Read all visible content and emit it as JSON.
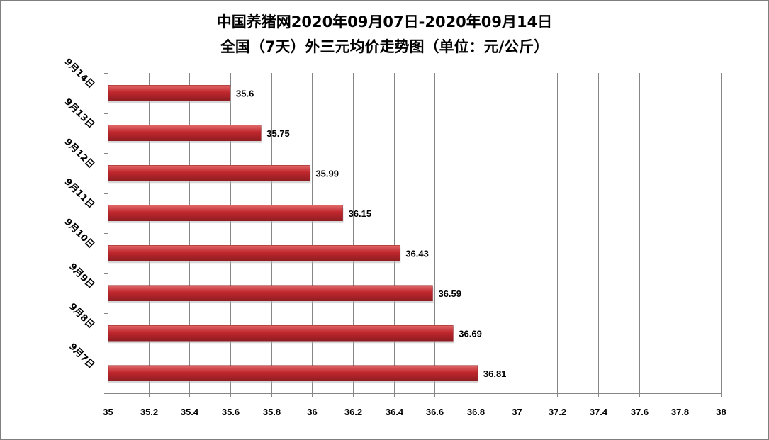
{
  "chart_data": {
    "type": "bar",
    "orientation": "horizontal",
    "title": "中国养猪网2020年09月07日-2020年09月14日",
    "subtitle": "全国（7天）外三元均价走势图（单位：元/公斤）",
    "categories": [
      "9月7日",
      "9月8日",
      "9月9日",
      "9月10日",
      "9月11日",
      "9月12日",
      "9月13日",
      "9月14日"
    ],
    "values": [
      36.81,
      36.69,
      36.59,
      36.43,
      36.15,
      35.99,
      35.75,
      35.6
    ],
    "data_labels": [
      "36.81",
      "36.69",
      "36.59",
      "36.43",
      "36.15",
      "35.99",
      "35.75",
      "35.6"
    ],
    "xlim": [
      35,
      38
    ],
    "xticks": [
      "35",
      "35.2",
      "35.4",
      "35.6",
      "35.8",
      "36",
      "36.2",
      "36.4",
      "36.6",
      "36.8",
      "37",
      "37.2",
      "37.4",
      "37.6",
      "37.8",
      "38"
    ],
    "xtick_values": [
      35,
      35.2,
      35.4,
      35.6,
      35.8,
      36,
      36.2,
      36.4,
      36.6,
      36.8,
      37,
      37.2,
      37.4,
      37.6,
      37.8,
      38
    ],
    "xlabel": "",
    "ylabel": "",
    "grid": "vertical",
    "bar_color": "#c0272d",
    "bar_color_light": "#e06a6a",
    "bar_color_dark": "#8f1d22"
  }
}
